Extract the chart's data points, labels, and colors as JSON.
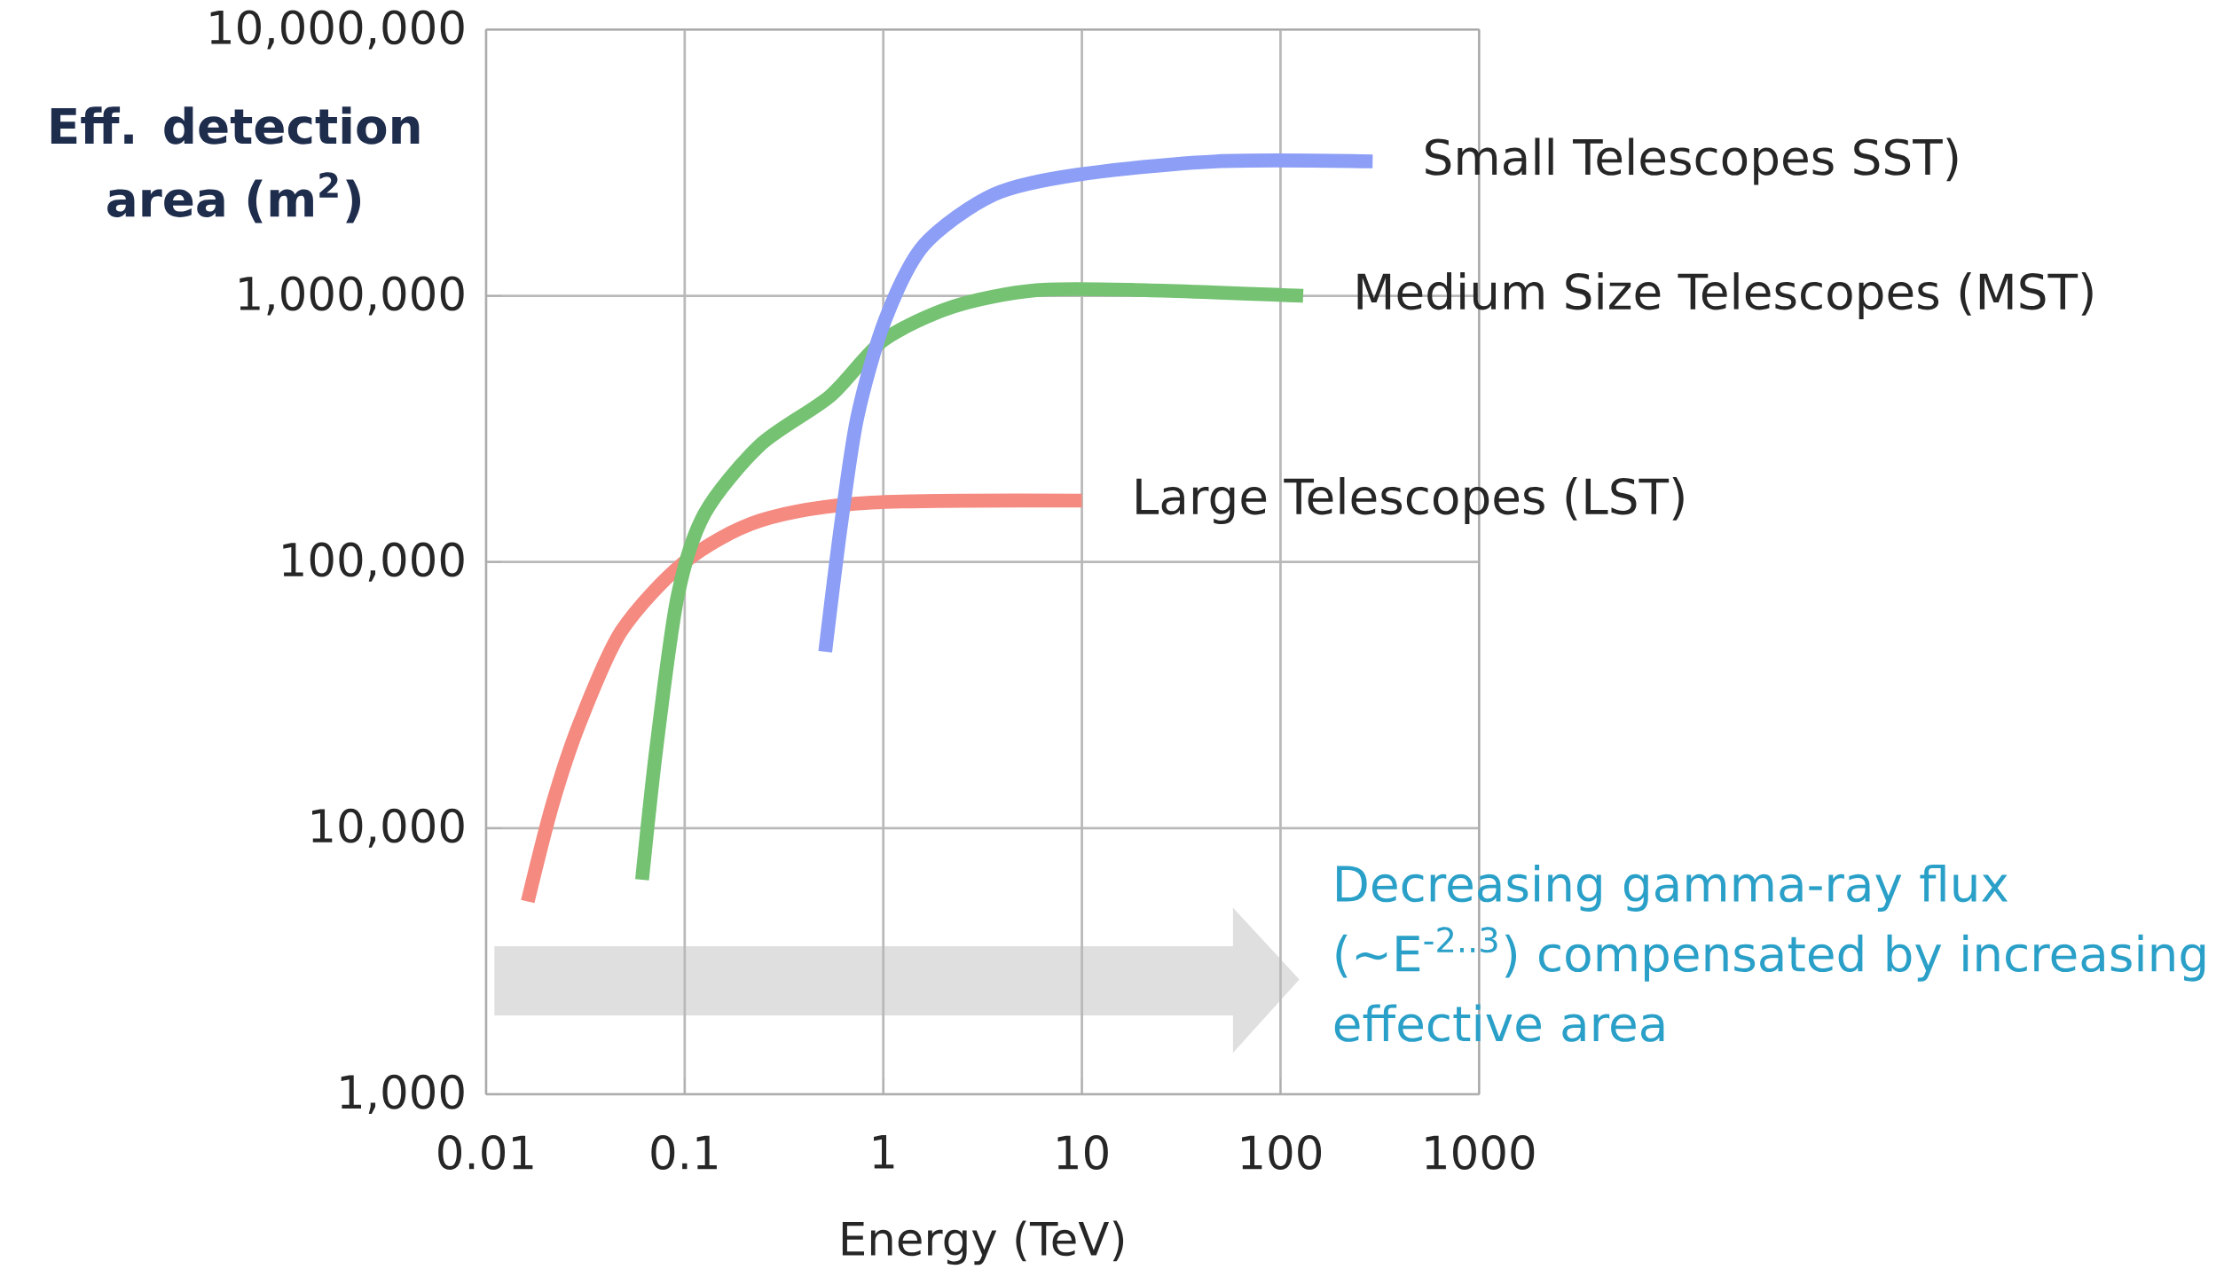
{
  "chart_data": {
    "type": "line",
    "xlabel": "Energy (TeV)",
    "ylabel": "Eff. detection area (m$^{2}$)",
    "log": "xy",
    "grid": true,
    "xlim": [
      0.01,
      1000
    ],
    "ylim": [
      1000,
      10000000
    ],
    "xticks": [
      0.01,
      0.1,
      1,
      10,
      100,
      1000
    ],
    "yticks": [
      {
        "value": 1000,
        "label": "1,000"
      },
      {
        "value": 10000,
        "label": "10,000"
      },
      {
        "value": 100000,
        "label": "100,000"
      },
      {
        "value": 1000000,
        "label": "1,000,000"
      },
      {
        "value": 10000000,
        "label": "10,000,000"
      }
    ],
    "series": [
      {
        "name": "Large Telescopes (LST)",
        "color": "#f48a80",
        "x": [
          0.0162,
          0.0216,
          0.0297,
          0.048,
          0.1,
          0.24,
          0.87,
          10
        ],
        "values": [
          5300,
          12300,
          25000,
          55000,
          100000,
          143000,
          167000,
          170000
        ]
      },
      {
        "name": "Medium Size Telescopes (MST)",
        "color": "#74c272",
        "x": [
          0.061,
          0.072,
          0.092,
          0.126,
          0.24,
          0.54,
          1,
          2.24,
          5.9,
          21,
          130
        ],
        "values": [
          6400,
          20000,
          74000,
          152000,
          275000,
          420000,
          680000,
          910000,
          1050000,
          1050000,
          1000000
        ]
      },
      {
        "name": "Small Telescopes SST)",
        "color": "#8c9ef6",
        "x": [
          0.51,
          0.61,
          0.74,
          1.02,
          1.6,
          3.6,
          9.5,
          47.5,
          291
        ],
        "values": [
          46000,
          135000,
          350000,
          810000,
          1550000,
          2400000,
          2850000,
          3200000,
          3200000
        ]
      }
    ],
    "annotations": [
      "Decreasing gamma-ray flux (~E$^{-2..3}$) compensated by increasing effective area"
    ]
  }
}
